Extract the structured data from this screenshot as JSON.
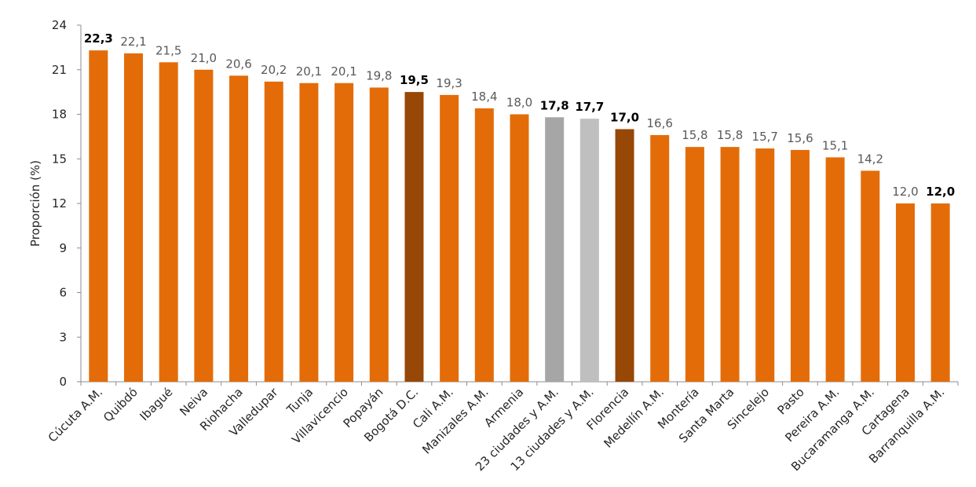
{
  "chart_data": {
    "type": "bar",
    "y_label": "Proporción (%)",
    "categories": [
      "Cúcuta A.M.",
      "Quibdó",
      "Ibagué",
      "Neiva",
      "Riohacha",
      "Valledupar",
      "Tunja",
      "Villavicencio",
      "Popayán",
      "Bogotá D.C.",
      "Cali A.M.",
      "Manizales A.M.",
      "Armenia",
      "23 ciudades y A.M.",
      "13 ciudades y A.M.",
      "Florencia",
      "Medellín A.M.",
      "Montería",
      "Santa Marta",
      "Sincelejo",
      "Pasto",
      "Pereira A.M.",
      "Bucaramanga A.M.",
      "Cartagena",
      "Barranquilla A.M."
    ],
    "values": [
      22.3,
      22.1,
      21.5,
      21.0,
      20.6,
      20.2,
      20.1,
      20.1,
      19.8,
      19.5,
      19.3,
      18.4,
      18.0,
      17.8,
      17.7,
      17.0,
      16.6,
      15.8,
      15.8,
      15.7,
      15.6,
      15.1,
      14.2,
      12.0,
      12.0
    ],
    "value_labels": [
      "22,3",
      "22,1",
      "21,5",
      "21,0",
      "20,6",
      "20,2",
      "20,1",
      "20,1",
      "19,8",
      "19,5",
      "19,3",
      "18,4",
      "18,0",
      "17,8",
      "17,7",
      "17,0",
      "16,6",
      "15,8",
      "15,8",
      "15,7",
      "15,6",
      "15,1",
      "14,2",
      "12,0",
      "12,0"
    ],
    "value_label_weights": [
      "bold",
      "normal",
      "normal",
      "normal",
      "normal",
      "normal",
      "normal",
      "normal",
      "normal",
      "bold",
      "normal",
      "normal",
      "normal",
      "bold",
      "bold",
      "bold",
      "normal",
      "normal",
      "normal",
      "normal",
      "normal",
      "normal",
      "normal",
      "normal",
      "bold"
    ],
    "colors": [
      "#e36c09",
      "#e36c09",
      "#e36c09",
      "#e36c09",
      "#e36c09",
      "#e36c09",
      "#e36c09",
      "#e36c09",
      "#e36c09",
      "#974706",
      "#e36c09",
      "#e36c09",
      "#e36c09",
      "#a6a6a6",
      "#bfbfbf",
      "#974706",
      "#e36c09",
      "#e36c09",
      "#e36c09",
      "#e36c09",
      "#e36c09",
      "#e36c09",
      "#e36c09",
      "#e36c09",
      "#e36c09"
    ],
    "ylim": [
      0,
      24
    ],
    "yticks": [
      0,
      3,
      6,
      9,
      12,
      15,
      18,
      21,
      24
    ],
    "grid": false
  }
}
